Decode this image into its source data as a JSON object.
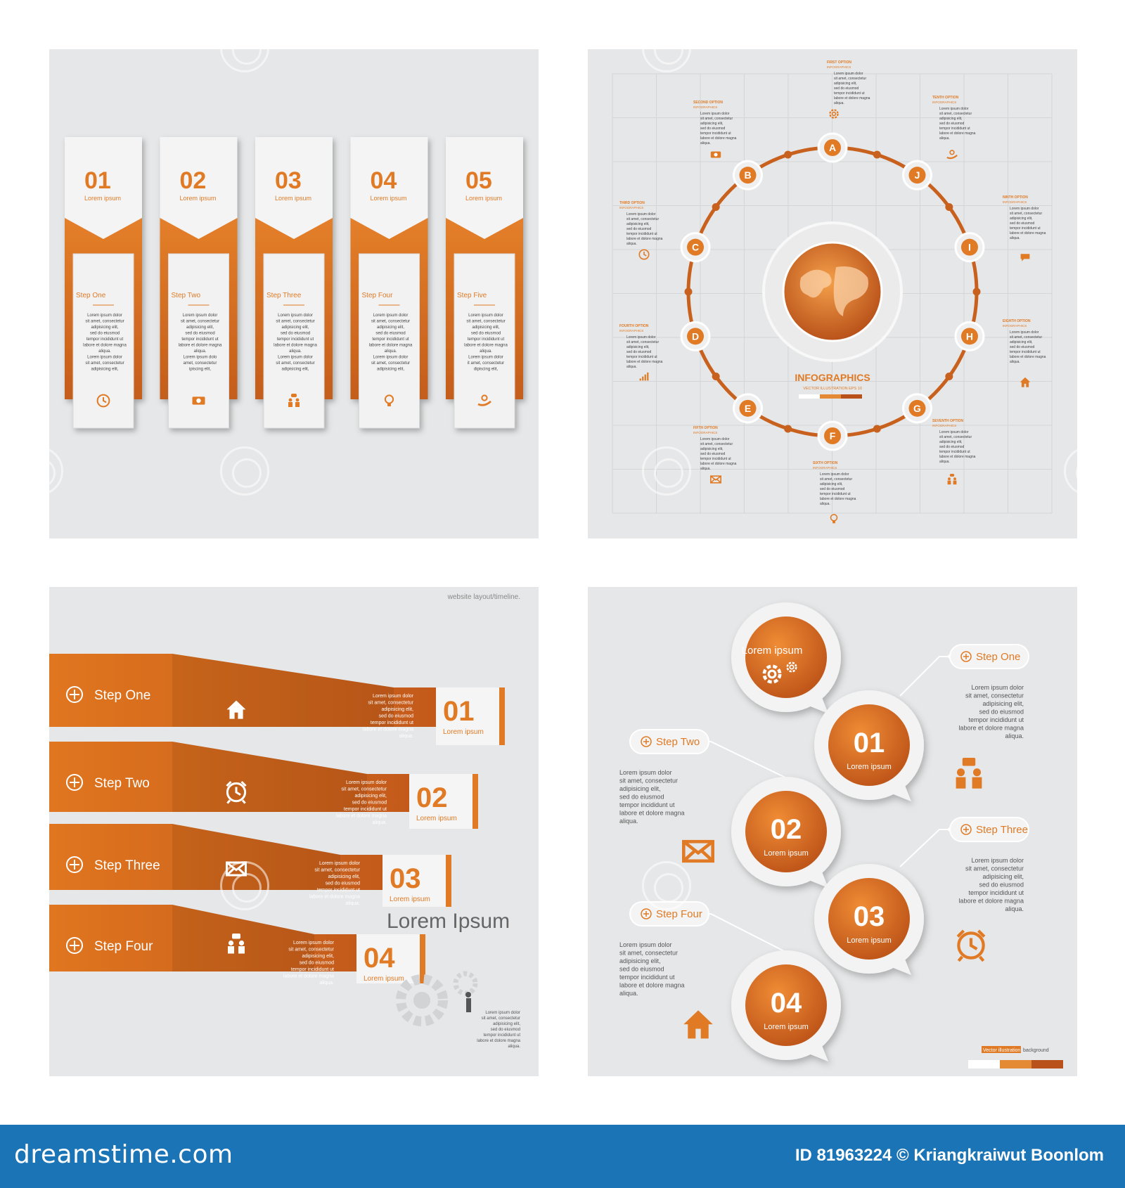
{
  "colors": {
    "accent": "#e07a25",
    "accent_dark": "#b8501a",
    "panel_bg": "#e6e7e8",
    "text_dark": "#3d3d3d",
    "footer_bg": "#1a74b5"
  },
  "panel1": {
    "columns": [
      {
        "num": "01",
        "sub": "Lorem ipsum",
        "step": "Step One",
        "body": [
          "Lorem ipsum dolor",
          "sit amet, consectetur",
          "adipisicing elit,",
          "sed do eiusmod",
          "tempor incididunt ut",
          "labore et dolore magna",
          "aliqua.",
          "Lorem ipsum dolor",
          "sit amet, consectetur",
          "adipisicing elit,"
        ],
        "icon": "clock-icon"
      },
      {
        "num": "02",
        "sub": "Lorem ipsum",
        "step": "Step Two",
        "body": [
          "Lorem ipsum dolor",
          "sit amet, consectetur",
          "adipisicing elit,",
          "sed do eiusmod",
          "tempor incididunt ut",
          "labore et dolore magna",
          "aliqua.",
          "Lorem ipsum dolo",
          "amet, consectetur",
          "ipiscing elit,"
        ],
        "icon": "money-icon"
      },
      {
        "num": "03",
        "sub": "Lorem ipsum",
        "step": "Step Three",
        "body": [
          "Lorem ipsum dolor",
          "sit amet, consectetur",
          "adipisicing elit,",
          "sed do eiusmod",
          "tempor incididunt ut",
          "labore et dolore magna",
          "aliqua.",
          "Lorem ipsum dolor",
          "sit amet, consectetur",
          "adipisicing elit,"
        ],
        "icon": "people-icon"
      },
      {
        "num": "04",
        "sub": "Lorem ipsum",
        "step": "Step Four",
        "body": [
          "Lorem ipsum dolor",
          "sit amet, consectetur",
          "adipisicing elit,",
          "sed do eiusmod",
          "tempor incididunt ut",
          "labore et dolore magna",
          "aliqua.",
          "Lorem ipsum dolor",
          "sit amet, consectetur",
          "adipisicing elit,"
        ],
        "icon": "lightbulb-icon"
      },
      {
        "num": "05",
        "sub": "Lorem ipsum",
        "step": "Step Five",
        "body": [
          "Lorem ipsum dolor",
          "sit amet, consectetur",
          "adipisicing elit,",
          "sed do eiusmod",
          "tempor incididunt ut",
          "labore et dolore magna",
          "aliqua.",
          "Lorem ipsum dolor",
          "it amet, consectetur",
          "dipiscing elit,"
        ],
        "icon": "hand-coin-icon"
      }
    ]
  },
  "panel2": {
    "title": "INFOGRAPHICS",
    "subtitle": "VECTOR ILLUSTRATION EPS 10",
    "nodes": [
      "A",
      "B",
      "C",
      "D",
      "E",
      "F",
      "G",
      "H",
      "I",
      "J"
    ],
    "options": [
      {
        "title": "FIRST OPTION",
        "sub": "INFOGRAPHICS",
        "body": [
          "Lorem ipsum dolor",
          "sit amet, consectetur",
          "adipisicing elit,",
          "sed do eiusmod",
          "tempor incididunt ut",
          "labore et dolore magna",
          "aliqua."
        ]
      },
      {
        "title": "SECOND OPTION",
        "sub": "INFOGRAPHICS",
        "body": [
          "Lorem ipsum dolor",
          "sit amet, consectetur",
          "adipisicing elit,",
          "sed do eiusmod",
          "tempor incididunt ut",
          "labore et dolore magna",
          "aliqua."
        ]
      },
      {
        "title": "THIRD OPTION",
        "sub": "INFOGRAPHICS",
        "body": [
          "Lorem ipsum dolor",
          "sit amet, consectetur",
          "adipisicing elit,",
          "sed do eiusmod",
          "tempor incididunt ut",
          "labore et dolore magna",
          "aliqua."
        ]
      },
      {
        "title": "FOURTH OPTION",
        "sub": "INFOGRAPHICS",
        "body": [
          "Lorem ipsum dolor",
          "sit amet, consectetur",
          "adipisicing elit,",
          "sed do eiusmod",
          "tempor incididunt ut",
          "labore et dolore magna",
          "aliqua."
        ]
      },
      {
        "title": "FIFTH OPTION",
        "sub": "INFOGRAPHICS",
        "body": [
          "Lorem ipsum dolor",
          "sit amet, consectetur",
          "adipisicing elit,",
          "sed do eiusmod",
          "tempor incididunt ut",
          "labore et dolore magna",
          "aliqua."
        ]
      },
      {
        "title": "SIXTH OPTION",
        "sub": "INFOGRAPHICS",
        "body": [
          "Lorem ipsum dolor",
          "sit amet, consectetur",
          "adipisicing elit,",
          "sed do eiusmod",
          "tempor incididunt ut",
          "labore et dolore magna",
          "aliqua."
        ]
      },
      {
        "title": "SEVENTH OPTION",
        "sub": "INFOGRAPHICS",
        "body": [
          "Lorem ipsum dolor",
          "sit amet, consectetur",
          "adipisicing elit,",
          "sed do eiusmod",
          "tempor incididunt ut",
          "labore et dolore magna",
          "aliqua."
        ]
      },
      {
        "title": "EIGHTH OPTION",
        "sub": "INFOGRAPHICS",
        "body": [
          "Lorem ipsum dolor",
          "sit amet, consectetur",
          "adipisicing elit,",
          "sed do eiusmod",
          "tempor incididunt ut",
          "labore et dolore magna",
          "aliqua."
        ]
      },
      {
        "title": "NINTH OPTION",
        "sub": "INFOGRAPHICS",
        "body": [
          "Lorem ipsum dolor",
          "sit amet, consectetur",
          "adipisicing elit,",
          "sed do eiusmod",
          "tempor incididunt ut",
          "labore et dolore magna",
          "aliqua."
        ]
      },
      {
        "title": "TENTH OPTION",
        "sub": "INFOGRAPHICS",
        "body": [
          "Lorem ipsum dolor",
          "sit amet, consectetur",
          "adipisicing elit,",
          "sed do eiusmod",
          "tempor incididunt ut",
          "labore et dolore magna",
          "aliqua."
        ]
      }
    ]
  },
  "panel3": {
    "caption": "website layout/timeline.",
    "title": "Lorem Ipsum",
    "title_body": [
      "Lorem ipsum dolor",
      "sit amet, consectetur",
      "adipisicing elit,",
      "sed do eiusmod",
      "tempor incididunt ut",
      "labore et dolore magna",
      "aliqua."
    ],
    "steps": [
      {
        "label": "Step One",
        "num": "01",
        "sub": "Lorem ipsum",
        "icon": "home-icon"
      },
      {
        "label": "Step Two",
        "num": "02",
        "sub": "Lorem ipsum",
        "icon": "alarm-clock-icon"
      },
      {
        "label": "Step Three",
        "num": "03",
        "sub": "Lorem ipsum",
        "icon": "envelope-icon"
      },
      {
        "label": "Step Four",
        "num": "04",
        "sub": "Lorem ipsum",
        "icon": "people-chat-icon"
      }
    ],
    "body": [
      "Lorem ipsum dolor",
      "sit amet, consectetur",
      "adipisicing elit,",
      "sed do eiusmod",
      "tempor incididunt ut",
      "labore et dolore magna",
      "aliqua."
    ]
  },
  "panel4": {
    "top": {
      "label": "Lorem ipsum"
    },
    "circles": [
      {
        "num": "01",
        "sub": "Lorem ipsum"
      },
      {
        "num": "02",
        "sub": "Lorem ipsum"
      },
      {
        "num": "03",
        "sub": "Lorem ipsum"
      },
      {
        "num": "04",
        "sub": "Lorem ipsum"
      }
    ],
    "pills": [
      "Step One",
      "Step Two",
      "Step Three",
      "Step Four"
    ],
    "body": [
      "Lorem ipsum dolor",
      "sit amet, consectetur",
      "adipisicing elit,",
      "sed do eiusmod",
      "tempor incididunt ut",
      "labore et dolore magna",
      "aliqua."
    ],
    "legend": {
      "tag": "Vector illustration",
      "text": "background"
    }
  },
  "footer": {
    "brand": "dreamstime.com",
    "credit": "ID 81963224 © Kriangkraiwut Boonlom"
  }
}
